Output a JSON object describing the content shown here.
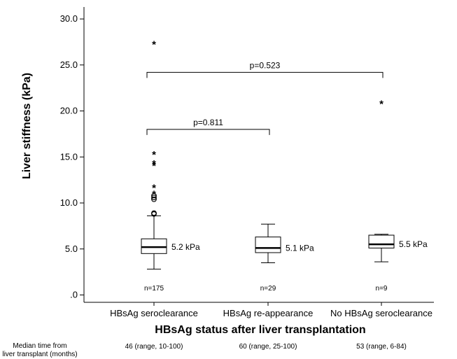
{
  "chart_data": {
    "type": "boxplot",
    "title": "",
    "xlabel": "HBsAg status after liver transplantation",
    "ylabel": "Liver stiffness (kPa)",
    "ylim": [
      -0.8,
      31.3
    ],
    "yticks": [
      0,
      5,
      10,
      15,
      20,
      25,
      30
    ],
    "ytick_labels": [
      ".0",
      "5.0",
      "10.0",
      "15.0",
      "20.0",
      "25.0",
      "30.0"
    ],
    "categories": [
      "HBsAg seroclearance",
      "HBsAg re-appearance",
      "No HBsAg seroclearance"
    ],
    "groups": [
      {
        "name": "HBsAg seroclearance",
        "n_label": "n=175",
        "median_label": "5.2 kPa",
        "min": 2.8,
        "q1": 4.5,
        "median": 5.2,
        "q3": 6.1,
        "max": 8.6,
        "outliers_circle": [
          8.8,
          8.9,
          10.4,
          10.6,
          10.8
        ],
        "outliers_star": [
          11.1,
          11.8,
          14.2,
          14.4,
          15.4,
          27.4
        ],
        "time_label": "46 (range, 10-100)"
      },
      {
        "name": "HBsAg re-appearance",
        "n_label": "n=29",
        "median_label": "5.1 kPa",
        "min": 3.5,
        "q1": 4.6,
        "median": 5.1,
        "q3": 6.3,
        "max": 7.7,
        "outliers_circle": [],
        "outliers_star": [],
        "time_label": "60 (range, 25-100)"
      },
      {
        "name": "No HBsAg seroclearance",
        "n_label": "n=9",
        "median_label": "5.5 kPa",
        "min": 3.6,
        "q1": 5.1,
        "median": 5.5,
        "q3": 6.5,
        "max": 6.6,
        "outliers_circle": [],
        "outliers_star": [
          20.9
        ],
        "time_label": "53 (range, 6-84)"
      }
    ],
    "comparisons": [
      {
        "from": 0,
        "to": 1,
        "label": "p=0.811",
        "y": 18.0
      },
      {
        "from": 0,
        "to": 2,
        "label": "p=0.523",
        "y": 24.2
      }
    ],
    "footer_label": "Median time from liver transplant (months)"
  }
}
